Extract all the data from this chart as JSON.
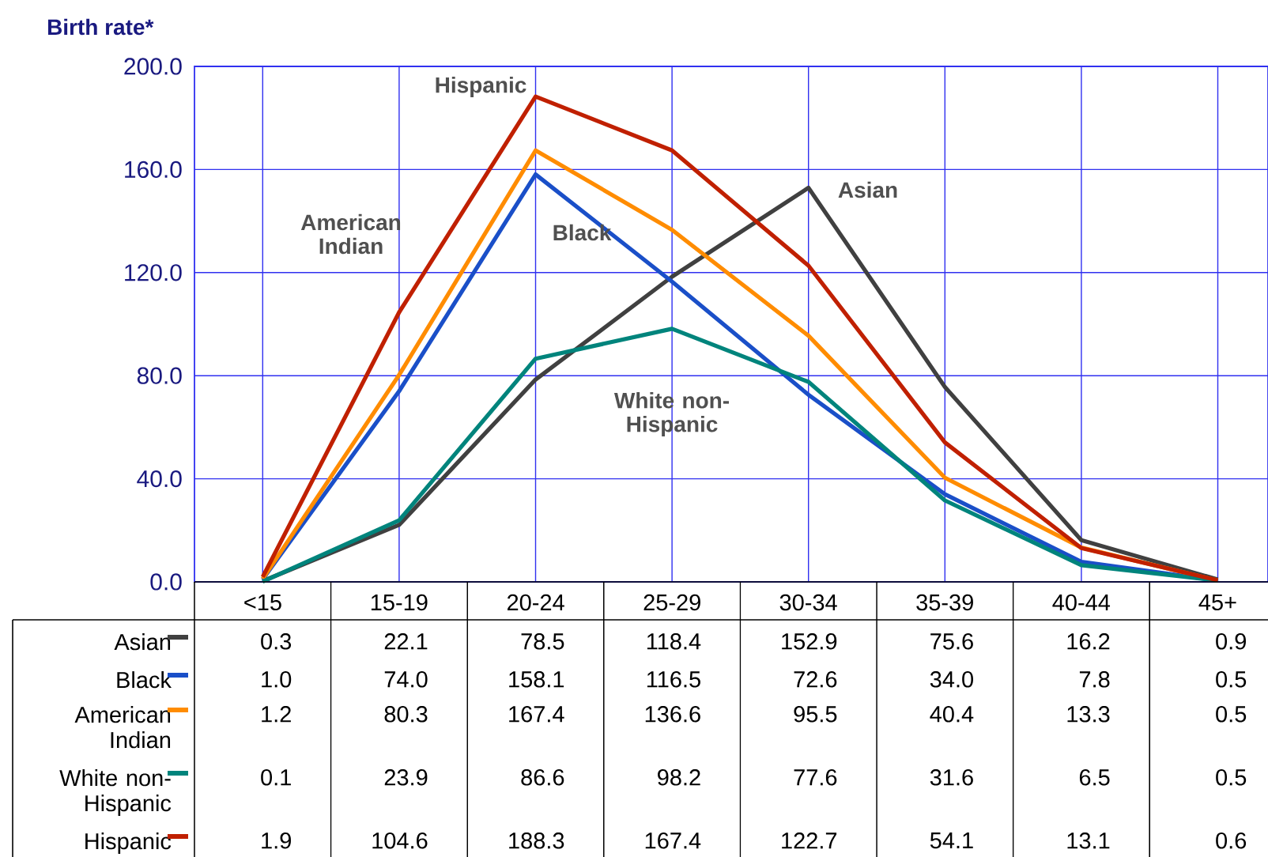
{
  "chart_data": {
    "type": "line",
    "ylabel": "Birth rate*",
    "categories": [
      "<15",
      "15-19",
      "20-24",
      "25-29",
      "30-34",
      "35-39",
      "40-44",
      "45+"
    ],
    "series": [
      {
        "name": "Asian",
        "color": "#404040",
        "values": [
          0.3,
          22.1,
          78.5,
          118.4,
          152.9,
          75.6,
          16.2,
          0.9
        ],
        "value_labels": [
          "0.3",
          "22.1",
          "78.5",
          "118.4",
          "152.9",
          "75.6",
          "16.2",
          "0.9"
        ]
      },
      {
        "name": "Black",
        "color": "#1a4fc8",
        "values": [
          1.0,
          74.0,
          158.1,
          116.5,
          72.6,
          34.0,
          7.8,
          0.5
        ],
        "value_labels": [
          "1.0",
          "74.0",
          "158.1",
          "116.5",
          "72.6",
          "34.0",
          "7.8",
          "0.5"
        ]
      },
      {
        "name": "American Indian",
        "color": "#ff8c00",
        "values": [
          1.2,
          80.3,
          167.4,
          136.6,
          95.5,
          40.4,
          13.3,
          0.5
        ],
        "value_labels": [
          "1.2",
          "80.3",
          "167.4",
          "136.6",
          "95.5",
          "40.4",
          "13.3",
          "0.5"
        ]
      },
      {
        "name": "White non-Hispanic",
        "color": "#00847c",
        "values": [
          0.1,
          23.9,
          86.6,
          98.2,
          77.6,
          31.6,
          6.5,
          0.5
        ],
        "value_labels": [
          "0.1",
          "23.9",
          "86.6",
          "98.2",
          "77.6",
          "31.6",
          "6.5",
          "0.5"
        ]
      },
      {
        "name": "Hispanic",
        "color": "#c02000",
        "values": [
          1.9,
          104.6,
          188.3,
          167.4,
          122.7,
          54.1,
          13.1,
          0.6
        ],
        "value_labels": [
          "1.9",
          "104.6",
          "188.3",
          "167.4",
          "122.7",
          "54.1",
          "13.1",
          "0.6"
        ]
      }
    ],
    "ylim": [
      0,
      200
    ],
    "yticks": [
      {
        "value": 0,
        "label": "0.0"
      },
      {
        "value": 40,
        "label": "40.0"
      },
      {
        "value": 80,
        "label": "80.0"
      },
      {
        "value": 120,
        "label": "120.0"
      },
      {
        "value": 160,
        "label": "160.0"
      },
      {
        "value": 200,
        "label": "200.0"
      }
    ],
    "grid": true,
    "legend": "bottom",
    "line_style": "solid",
    "marker": "none"
  }
}
